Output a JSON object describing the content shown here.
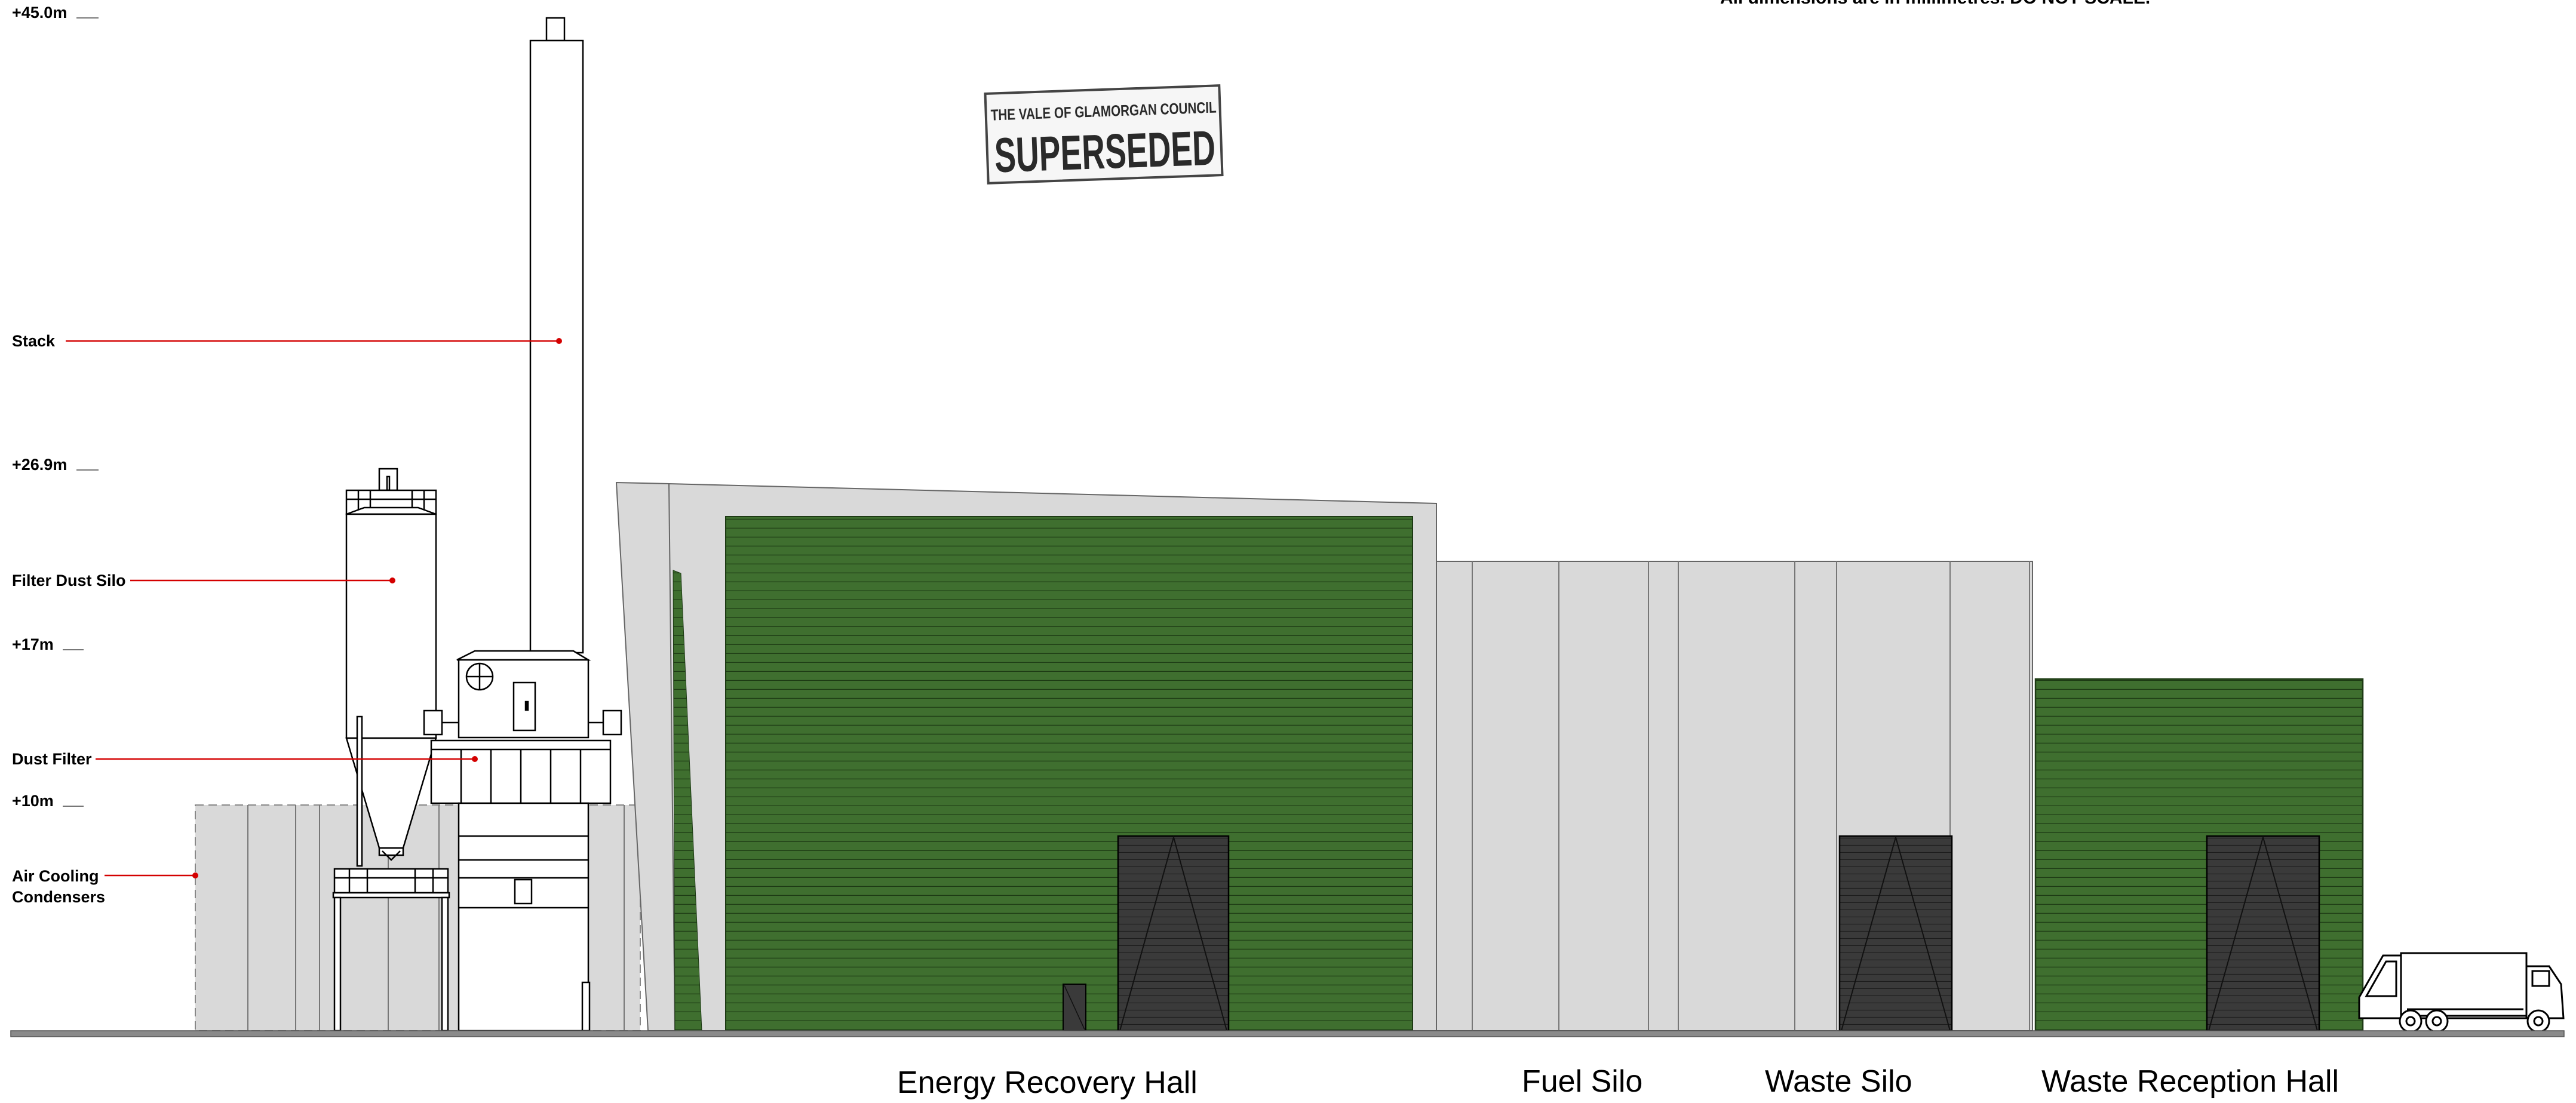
{
  "notes": {
    "dimensions_note": "All dimensions are in millimetres. DO NOT SCALE."
  },
  "stamp": {
    "line1": "THE VALE OF GLAMORGAN COUNCIL",
    "line2": "SUPERSEDED"
  },
  "levels": [
    {
      "id": "level-45",
      "text": "+45.0m"
    },
    {
      "id": "level-26-9",
      "text": "+26.9m"
    },
    {
      "id": "level-17",
      "text": "+17m"
    },
    {
      "id": "level-10",
      "text": "+10m"
    }
  ],
  "callouts": {
    "stack": "Stack",
    "filter_dust_silo": "Filter Dust Silo",
    "dust_filter": "Dust Filter",
    "air_cooling_line1": "Air Cooling",
    "air_cooling_line2": "Condensers"
  },
  "buildings": {
    "energy_recovery_hall": "Energy Recovery Hall",
    "fuel_silo": "Fuel Silo",
    "waste_silo": "Waste Silo",
    "waste_reception_hall": "Waste Reception Hall"
  },
  "colors": {
    "cladding_green": "#3f6f2f",
    "cladding_grey": "#d9d9d9",
    "door_dark": "#3a3a3a",
    "leader_red": "#d40000",
    "ground": "#8a8a8a"
  }
}
